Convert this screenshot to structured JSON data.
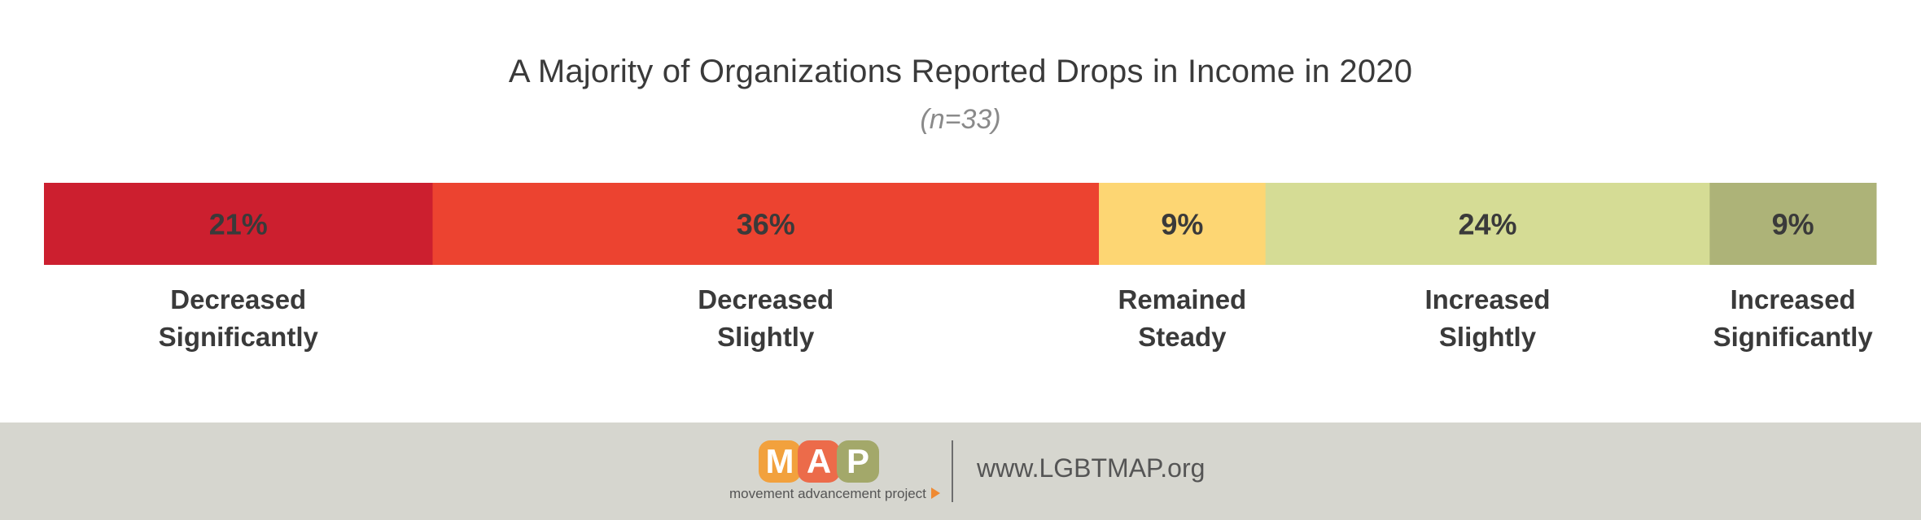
{
  "chart_data": {
    "type": "bar",
    "orientation": "horizontal-stacked",
    "title": "A Majority of Organizations Reported Drops in Income in 2020",
    "subtitle": "(n=33)",
    "unit": "%",
    "segments": [
      {
        "value": 21,
        "value_label": "21%",
        "label_lines": [
          "Decreased",
          "Significantly"
        ],
        "color": "#cc1f2f"
      },
      {
        "value": 36,
        "value_label": "36%",
        "label_lines": [
          "Decreased",
          "Slightly"
        ],
        "color": "#ec4330"
      },
      {
        "value": 9,
        "value_label": "9%",
        "label_lines": [
          "Remained",
          "Steady"
        ],
        "color": "#fdd673"
      },
      {
        "value": 24,
        "value_label": "24%",
        "label_lines": [
          "Increased",
          "Slightly"
        ],
        "color": "#d5dc95"
      },
      {
        "value": 9,
        "value_label": "9%",
        "label_lines": [
          "Increased",
          "Significantly"
        ],
        "color": "#adb378"
      }
    ],
    "legend": "none",
    "grid": false
  },
  "footer": {
    "logo_letters": [
      {
        "char": "M",
        "color": "#f2a13d"
      },
      {
        "char": "A",
        "color": "#ec6b4a"
      },
      {
        "char": "P",
        "color": "#a3a86a"
      }
    ],
    "logo_tagline": "movement advancement project",
    "website": "www.LGBTMAP.org"
  }
}
